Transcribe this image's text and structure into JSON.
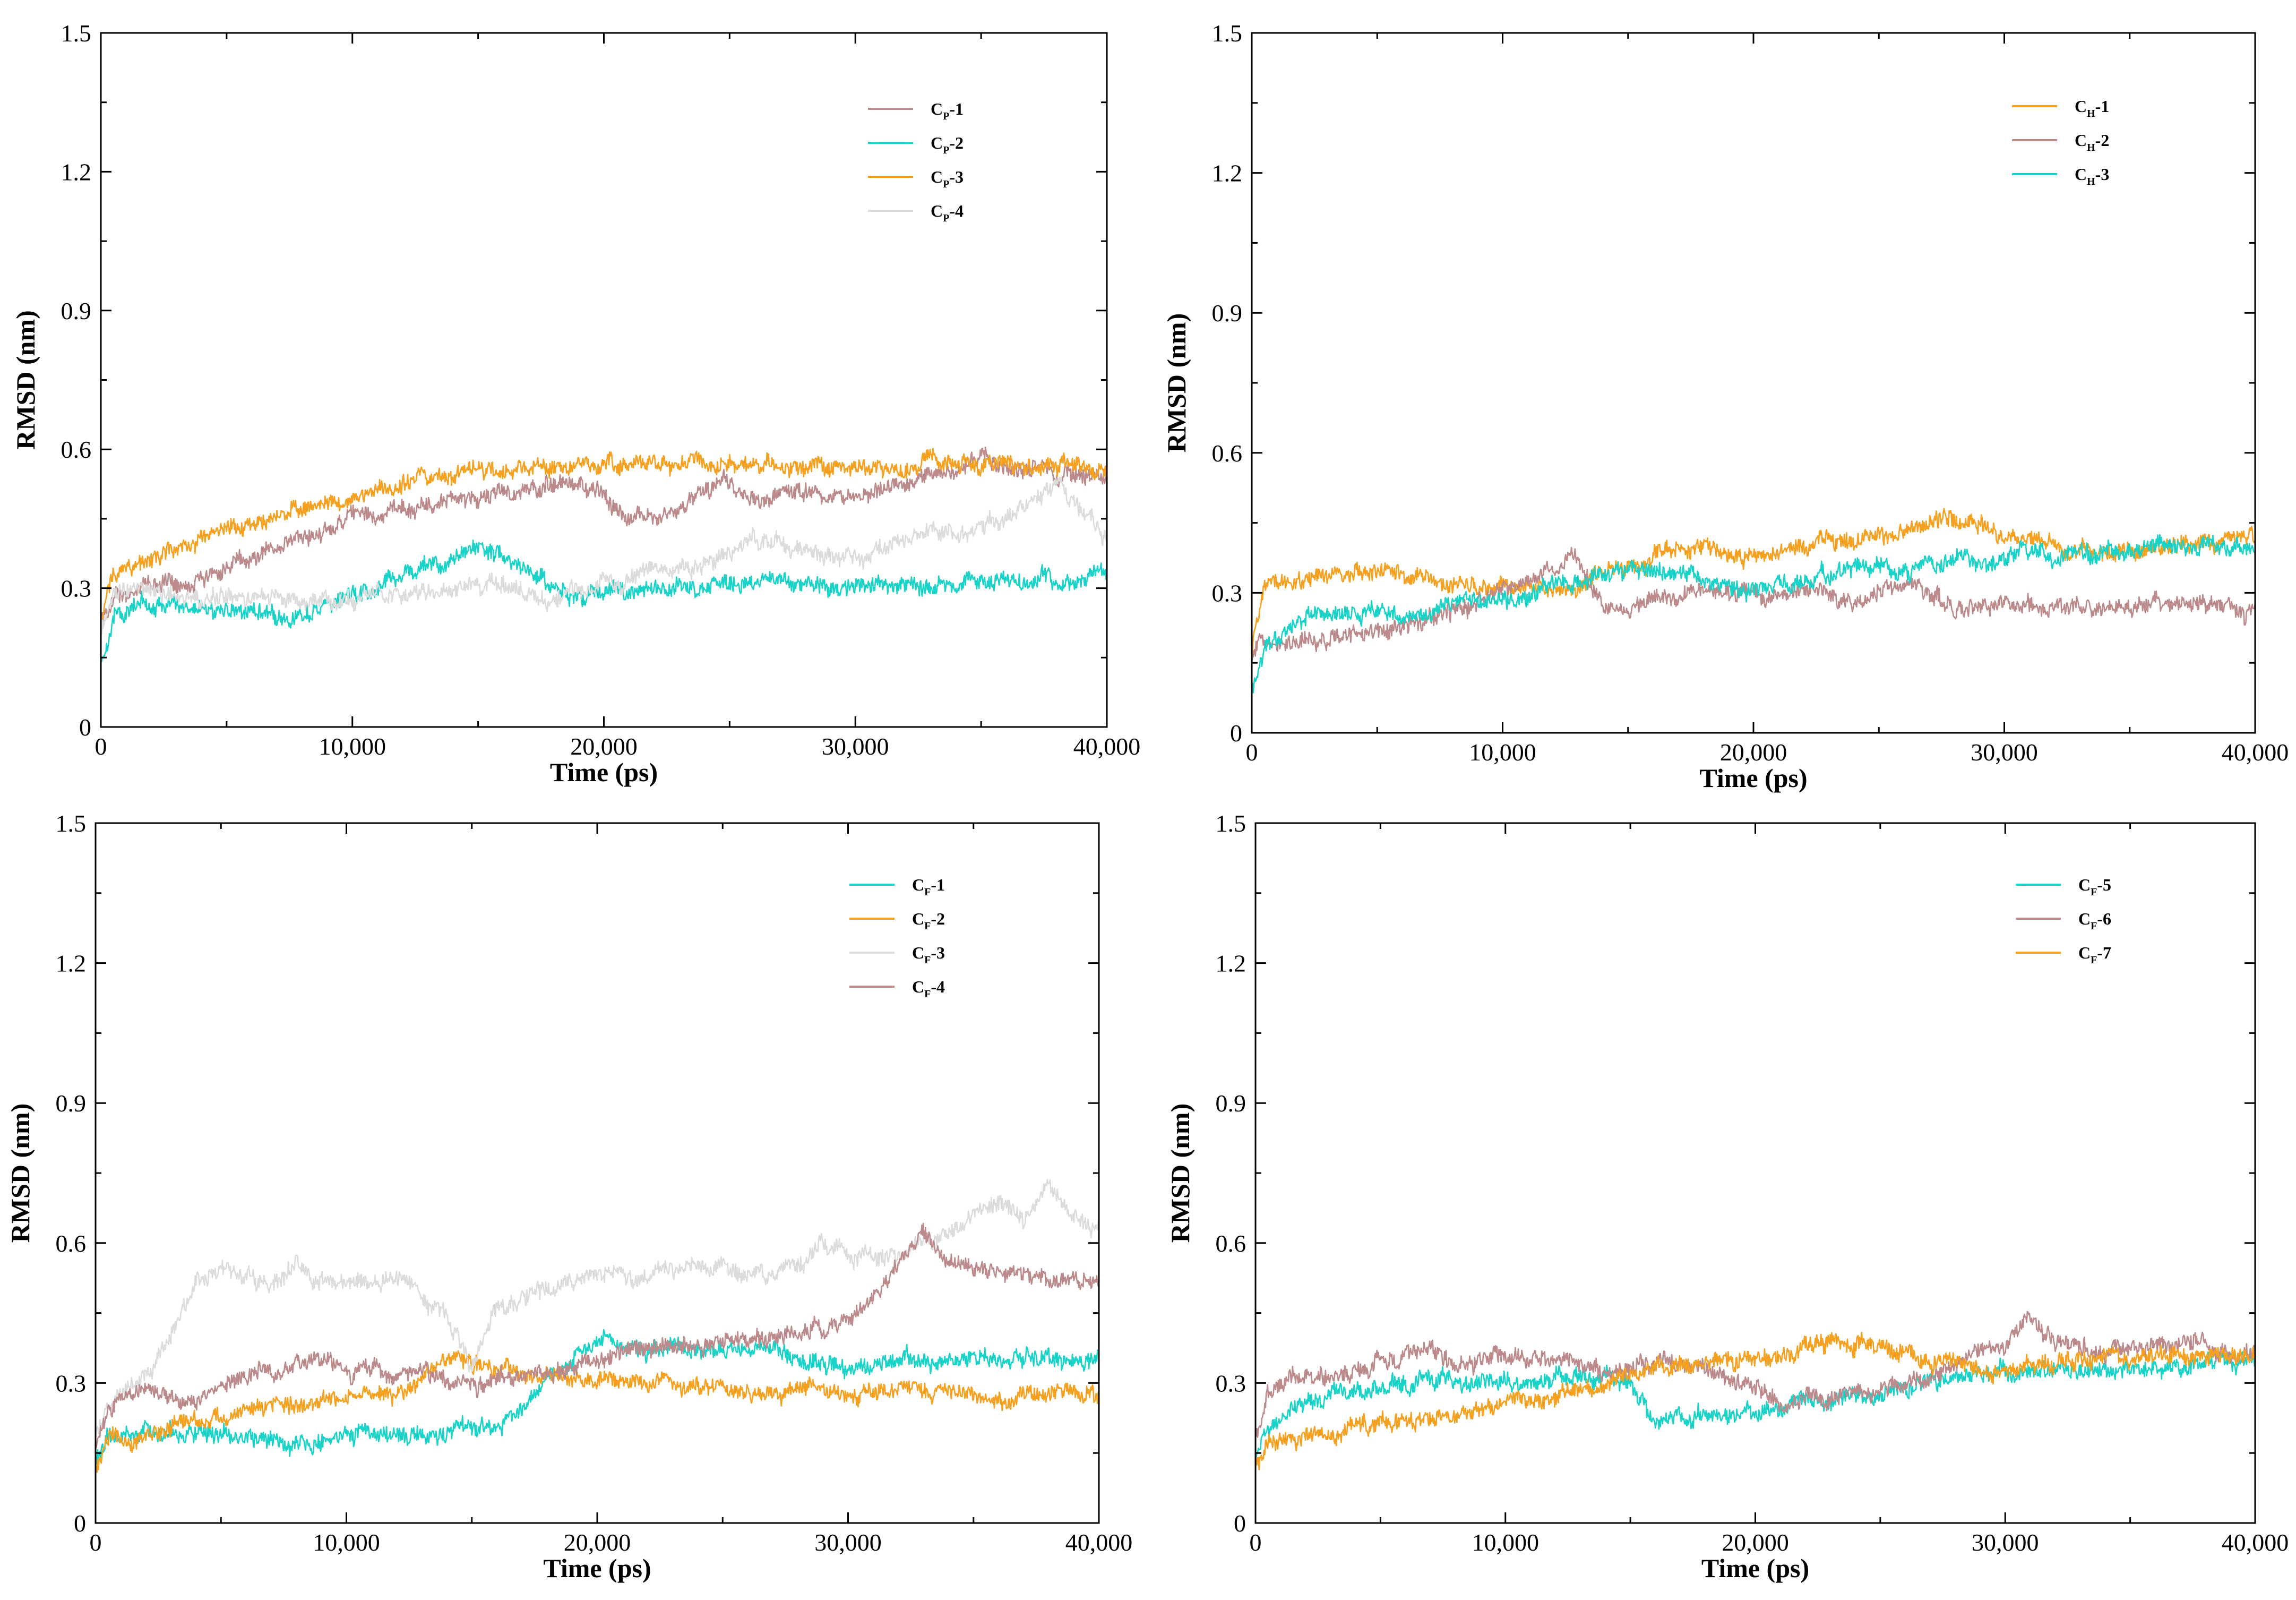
{
  "chart_data": [
    {
      "type": "line",
      "title": "",
      "xlabel": "Time (ps)",
      "ylabel": "RMSD (nm)",
      "xlim": [
        0,
        40000
      ],
      "ylim": [
        0,
        1.5
      ],
      "xticks": [
        0,
        10000,
        20000,
        30000,
        40000
      ],
      "xtick_labels": [
        "0",
        "10,000",
        "20,000",
        "30,000",
        "40,000"
      ],
      "yticks": [
        0,
        0.3,
        0.6,
        0.9,
        1.2,
        1.5
      ],
      "ytick_labels": [
        "0",
        "0.3",
        "0.6",
        "0.9",
        "1.2",
        "1.5"
      ],
      "legend_position": "top-right",
      "series": [
        {
          "name": "CP-1",
          "label": "C",
          "sub": "P",
          "suffix": "-1",
          "color": "#bc8a8a",
          "x": [
            0,
            500,
            2000,
            4000,
            6000,
            8000,
            10000,
            12000,
            14000,
            16000,
            18000,
            19000,
            20000,
            21000,
            22000,
            24000,
            25000,
            26000,
            28000,
            30000,
            32000,
            34000,
            35000,
            36000,
            38000,
            40000
          ],
          "y": [
            0.22,
            0.28,
            0.31,
            0.32,
            0.37,
            0.41,
            0.45,
            0.47,
            0.49,
            0.5,
            0.52,
            0.52,
            0.51,
            0.45,
            0.46,
            0.5,
            0.53,
            0.49,
            0.51,
            0.48,
            0.53,
            0.55,
            0.59,
            0.56,
            0.55,
            0.54
          ]
        },
        {
          "name": "CP-2",
          "label": "C",
          "sub": "P",
          "suffix": "-2",
          "color": "#1ad3c8",
          "x": [
            0,
            500,
            2000,
            4000,
            6000,
            8000,
            10000,
            12000,
            14000,
            15000,
            16000,
            17000,
            18000,
            19000,
            20000,
            22000,
            24000,
            26000,
            28000,
            30000,
            32000,
            34000,
            36000,
            38000,
            40000
          ],
          "y": [
            0.14,
            0.24,
            0.27,
            0.26,
            0.25,
            0.24,
            0.28,
            0.33,
            0.36,
            0.39,
            0.37,
            0.34,
            0.3,
            0.28,
            0.29,
            0.3,
            0.3,
            0.31,
            0.31,
            0.3,
            0.31,
            0.31,
            0.32,
            0.32,
            0.34
          ]
        },
        {
          "name": "CP-3",
          "label": "C",
          "sub": "P",
          "suffix": "-3",
          "color": "#f6a01f",
          "x": [
            0,
            500,
            2000,
            4000,
            6000,
            8000,
            10000,
            12000,
            14000,
            16000,
            18000,
            20000,
            22000,
            24000,
            26000,
            28000,
            30000,
            32000,
            34000,
            36000,
            38000,
            40000
          ],
          "y": [
            0.22,
            0.34,
            0.36,
            0.4,
            0.44,
            0.48,
            0.49,
            0.53,
            0.55,
            0.56,
            0.56,
            0.57,
            0.57,
            0.57,
            0.57,
            0.56,
            0.56,
            0.56,
            0.57,
            0.57,
            0.56,
            0.56
          ]
        },
        {
          "name": "CP-4",
          "label": "C",
          "sub": "P",
          "suffix": "-4",
          "color": "#dcdcdc",
          "x": [
            0,
            500,
            2000,
            4000,
            6000,
            8000,
            10000,
            12000,
            14000,
            16000,
            18000,
            20000,
            22000,
            24000,
            26000,
            28000,
            30000,
            32000,
            34000,
            36000,
            38000,
            39000,
            40000
          ],
          "y": [
            0.2,
            0.29,
            0.3,
            0.28,
            0.28,
            0.27,
            0.28,
            0.28,
            0.3,
            0.31,
            0.27,
            0.31,
            0.34,
            0.35,
            0.41,
            0.38,
            0.36,
            0.4,
            0.42,
            0.45,
            0.52,
            0.46,
            0.42
          ]
        }
      ]
    },
    {
      "type": "line",
      "title": "",
      "xlabel": "Time (ps)",
      "ylabel": "RMSD (nm)",
      "xlim": [
        0,
        40000
      ],
      "ylim": [
        0,
        1.5
      ],
      "xticks": [
        0,
        10000,
        20000,
        30000,
        40000
      ],
      "xtick_labels": [
        "0",
        "10,000",
        "20,000",
        "30,000",
        "40,000"
      ],
      "yticks": [
        0,
        0.3,
        0.6,
        0.9,
        1.2,
        1.5
      ],
      "ytick_labels": [
        "0",
        "0.3",
        "0.6",
        "0.9",
        "1.2",
        "1.5"
      ],
      "legend_position": "top-right",
      "series": [
        {
          "name": "CH-1",
          "label": "C",
          "sub": "H",
          "suffix": "-1",
          "color": "#f6a01f",
          "x": [
            0,
            500,
            2000,
            4000,
            6000,
            8000,
            10000,
            12000,
            14000,
            16000,
            18000,
            20000,
            22000,
            24000,
            26000,
            28000,
            30000,
            32000,
            34000,
            36000,
            38000,
            40000
          ],
          "y": [
            0.18,
            0.33,
            0.33,
            0.34,
            0.34,
            0.31,
            0.32,
            0.3,
            0.33,
            0.38,
            0.4,
            0.37,
            0.4,
            0.41,
            0.44,
            0.45,
            0.42,
            0.4,
            0.38,
            0.4,
            0.41,
            0.42
          ]
        },
        {
          "name": "CH-2",
          "label": "C",
          "sub": "H",
          "suffix": "-2",
          "color": "#bc8a8a",
          "x": [
            0,
            500,
            2000,
            4000,
            6000,
            8000,
            10000,
            11000,
            12000,
            12800,
            14000,
            16000,
            18000,
            20000,
            22000,
            24000,
            26000,
            28000,
            30000,
            32000,
            34000,
            36000,
            38000,
            40000
          ],
          "y": [
            0.16,
            0.21,
            0.2,
            0.21,
            0.22,
            0.26,
            0.3,
            0.32,
            0.35,
            0.38,
            0.28,
            0.28,
            0.3,
            0.29,
            0.31,
            0.28,
            0.32,
            0.27,
            0.28,
            0.27,
            0.26,
            0.28,
            0.27,
            0.26
          ]
        },
        {
          "name": "CH-3",
          "label": "C",
          "sub": "H",
          "suffix": "-3",
          "color": "#1ad3c8",
          "x": [
            0,
            500,
            2000,
            4000,
            6000,
            8000,
            10000,
            12000,
            14000,
            16000,
            18000,
            20000,
            22000,
            24000,
            26000,
            28000,
            30000,
            32000,
            34000,
            36000,
            38000,
            40000
          ],
          "y": [
            0.1,
            0.18,
            0.24,
            0.26,
            0.25,
            0.27,
            0.28,
            0.32,
            0.34,
            0.35,
            0.33,
            0.3,
            0.33,
            0.36,
            0.35,
            0.37,
            0.38,
            0.38,
            0.39,
            0.4,
            0.4,
            0.38
          ]
        }
      ]
    },
    {
      "type": "line",
      "title": "",
      "xlabel": "Time (ps)",
      "ylabel": "RMSD (nm)",
      "xlim": [
        0,
        40000
      ],
      "ylim": [
        0,
        1.5
      ],
      "xticks": [
        0,
        10000,
        20000,
        30000,
        40000
      ],
      "xtick_labels": [
        "0",
        "10,000",
        "20,000",
        "30,000",
        "40,000"
      ],
      "yticks": [
        0,
        0.3,
        0.6,
        0.9,
        1.2,
        1.5
      ],
      "ytick_labels": [
        "0",
        "0.3",
        "0.6",
        "0.9",
        "1.2",
        "1.5"
      ],
      "legend_position": "top-right",
      "series": [
        {
          "name": "CF-1",
          "label": "C",
          "sub": "F",
          "suffix": "-1",
          "color": "#1ad3c8",
          "x": [
            0,
            500,
            2000,
            4000,
            6000,
            8000,
            10000,
            12000,
            14000,
            16000,
            17000,
            18000,
            19000,
            20000,
            22000,
            24000,
            26000,
            28000,
            30000,
            32000,
            34000,
            36000,
            38000,
            40000
          ],
          "y": [
            0.14,
            0.18,
            0.19,
            0.2,
            0.18,
            0.17,
            0.19,
            0.19,
            0.19,
            0.21,
            0.25,
            0.31,
            0.36,
            0.4,
            0.36,
            0.37,
            0.38,
            0.35,
            0.33,
            0.35,
            0.34,
            0.35,
            0.35,
            0.35
          ]
        },
        {
          "name": "CF-2",
          "label": "C",
          "sub": "F",
          "suffix": "-2",
          "color": "#f6a01f",
          "x": [
            0,
            500,
            2000,
            4000,
            6000,
            8000,
            10000,
            12000,
            13000,
            14000,
            16000,
            18000,
            20000,
            22000,
            24000,
            26000,
            28000,
            30000,
            32000,
            34000,
            36000,
            38000,
            40000
          ],
          "y": [
            0.12,
            0.17,
            0.19,
            0.21,
            0.24,
            0.25,
            0.27,
            0.28,
            0.3,
            0.36,
            0.33,
            0.31,
            0.31,
            0.3,
            0.29,
            0.28,
            0.28,
            0.28,
            0.28,
            0.28,
            0.27,
            0.28,
            0.27
          ]
        },
        {
          "name": "CF-3",
          "label": "C",
          "sub": "F",
          "suffix": "-3",
          "color": "#dcdcdc",
          "x": [
            0,
            500,
            2000,
            3000,
            4000,
            5000,
            6000,
            7000,
            8000,
            9000,
            10000,
            11000,
            12000,
            13000,
            14000,
            15000,
            16000,
            18000,
            20000,
            22000,
            24000,
            26000,
            28000,
            29000,
            30000,
            32000,
            34000,
            36000,
            37000,
            38000,
            39000,
            40000
          ],
          "y": [
            0.18,
            0.26,
            0.32,
            0.4,
            0.52,
            0.55,
            0.54,
            0.51,
            0.56,
            0.53,
            0.52,
            0.51,
            0.53,
            0.48,
            0.45,
            0.34,
            0.47,
            0.5,
            0.53,
            0.54,
            0.54,
            0.53,
            0.55,
            0.6,
            0.58,
            0.57,
            0.62,
            0.7,
            0.65,
            0.72,
            0.66,
            0.62
          ]
        },
        {
          "name": "CF-4",
          "label": "C",
          "sub": "F",
          "suffix": "-4",
          "color": "#bc8a8a",
          "x": [
            0,
            500,
            2000,
            4000,
            6000,
            8000,
            10000,
            12000,
            14000,
            16000,
            18000,
            20000,
            22000,
            24000,
            26000,
            28000,
            30000,
            31000,
            32000,
            33000,
            34000,
            36000,
            38000,
            40000
          ],
          "y": [
            0.17,
            0.24,
            0.29,
            0.26,
            0.32,
            0.34,
            0.33,
            0.32,
            0.3,
            0.31,
            0.32,
            0.35,
            0.37,
            0.38,
            0.39,
            0.4,
            0.44,
            0.48,
            0.55,
            0.62,
            0.55,
            0.54,
            0.53,
            0.52
          ]
        }
      ]
    },
    {
      "type": "line",
      "title": "",
      "xlabel": "Time (ps)",
      "ylabel": "RMSD (nm)",
      "xlim": [
        0,
        40000
      ],
      "ylim": [
        0,
        1.5
      ],
      "xticks": [
        0,
        10000,
        20000,
        30000,
        40000
      ],
      "xtick_labels": [
        "0",
        "10,000",
        "20,000",
        "30,000",
        "40,000"
      ],
      "yticks": [
        0,
        0.3,
        0.6,
        0.9,
        1.2,
        1.5
      ],
      "ytick_labels": [
        "0",
        "0.3",
        "0.6",
        "0.9",
        "1.2",
        "1.5"
      ],
      "legend_position": "top-right",
      "series": [
        {
          "name": "CF-5",
          "label": "C",
          "sub": "F",
          "suffix": "-5",
          "color": "#1ad3c8",
          "x": [
            0,
            500,
            2000,
            4000,
            6000,
            8000,
            10000,
            12000,
            14000,
            15000,
            16000,
            18000,
            20000,
            22000,
            24000,
            26000,
            28000,
            30000,
            32000,
            34000,
            36000,
            38000,
            40000
          ],
          "y": [
            0.14,
            0.2,
            0.25,
            0.29,
            0.3,
            0.31,
            0.3,
            0.31,
            0.32,
            0.29,
            0.22,
            0.23,
            0.24,
            0.26,
            0.27,
            0.29,
            0.31,
            0.32,
            0.32,
            0.33,
            0.33,
            0.34,
            0.35
          ]
        },
        {
          "name": "CF-6",
          "label": "C",
          "sub": "F",
          "suffix": "-6",
          "color": "#bc8a8a",
          "x": [
            0,
            500,
            2000,
            4000,
            6000,
            7000,
            8000,
            10000,
            12000,
            14000,
            16000,
            18000,
            20000,
            21000,
            22000,
            24000,
            26000,
            28000,
            30000,
            31000,
            32000,
            34000,
            36000,
            38000,
            40000
          ],
          "y": [
            0.18,
            0.28,
            0.31,
            0.33,
            0.36,
            0.38,
            0.34,
            0.36,
            0.35,
            0.33,
            0.34,
            0.33,
            0.28,
            0.25,
            0.26,
            0.28,
            0.29,
            0.33,
            0.38,
            0.44,
            0.38,
            0.37,
            0.38,
            0.38,
            0.37
          ]
        },
        {
          "name": "CF-7",
          "label": "C",
          "sub": "F",
          "suffix": "-7",
          "color": "#f6a01f",
          "x": [
            0,
            500,
            2000,
            4000,
            6000,
            8000,
            10000,
            12000,
            14000,
            16000,
            18000,
            20000,
            22000,
            23000,
            24000,
            26000,
            28000,
            30000,
            32000,
            34000,
            36000,
            38000,
            40000
          ],
          "y": [
            0.12,
            0.16,
            0.18,
            0.21,
            0.23,
            0.23,
            0.26,
            0.27,
            0.29,
            0.33,
            0.35,
            0.35,
            0.37,
            0.4,
            0.38,
            0.36,
            0.34,
            0.33,
            0.35,
            0.35,
            0.36,
            0.36,
            0.37
          ]
        }
      ]
    }
  ]
}
